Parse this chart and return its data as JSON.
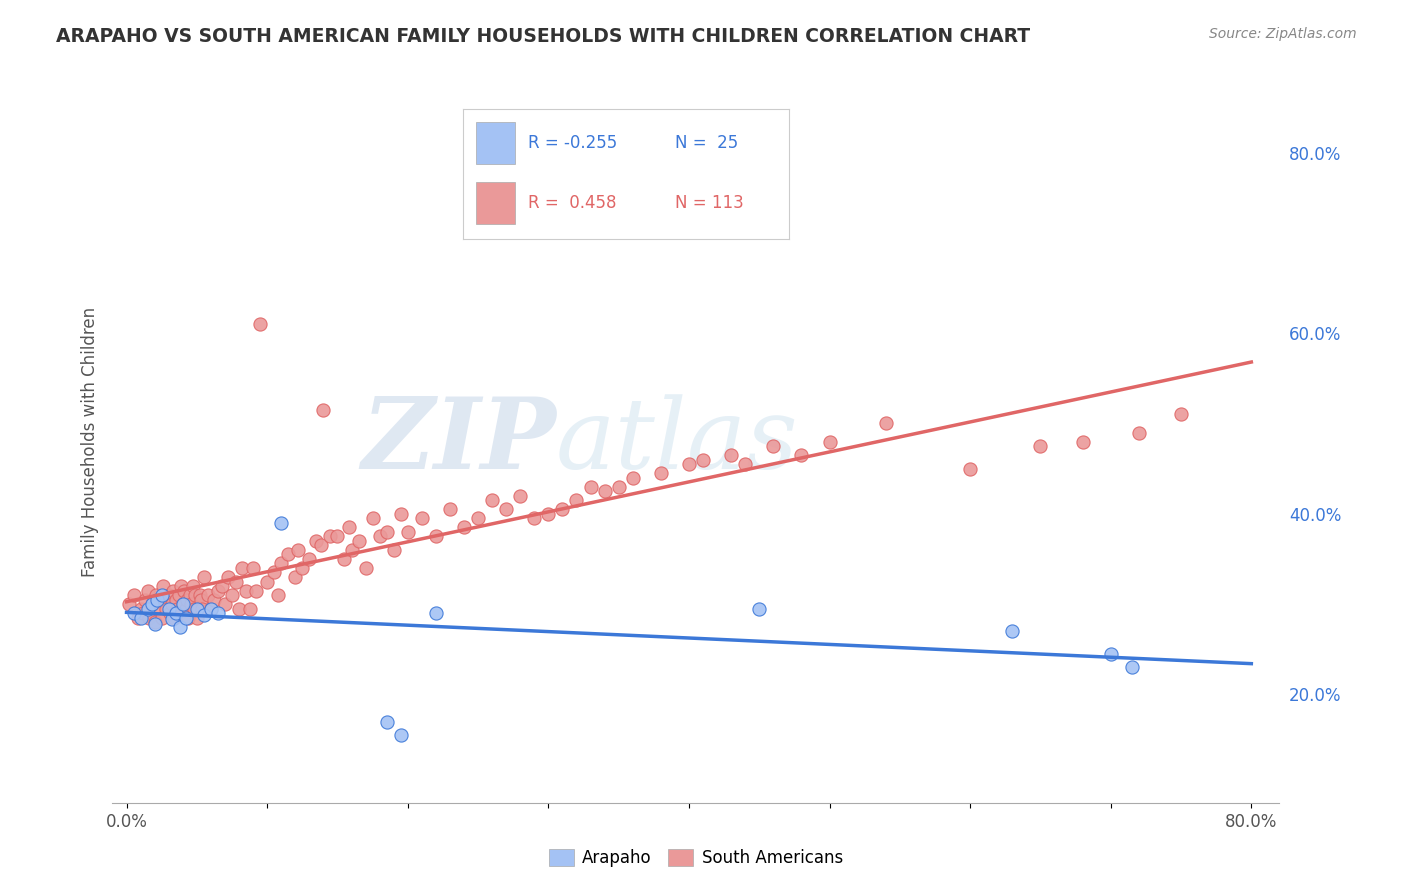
{
  "title": "ARAPAHO VS SOUTH AMERICAN FAMILY HOUSEHOLDS WITH CHILDREN CORRELATION CHART",
  "source": "Source: ZipAtlas.com",
  "ylabel": "Family Households with Children",
  "xlim": [
    -0.01,
    0.82
  ],
  "ylim": [
    0.08,
    0.88
  ],
  "x_ticks": [
    0.0,
    0.1,
    0.2,
    0.3,
    0.4,
    0.5,
    0.6,
    0.7,
    0.8
  ],
  "x_tick_labels": [
    "0.0%",
    "",
    "",
    "",
    "",
    "",
    "",
    "",
    "80.0%"
  ],
  "y_ticks_right": [
    0.2,
    0.4,
    0.6,
    0.8
  ],
  "y_tick_labels_right": [
    "20.0%",
    "40.0%",
    "60.0%",
    "80.0%"
  ],
  "arapaho_color": "#a4c2f4",
  "sa_color": "#ea9999",
  "arapaho_line_color": "#3c78d8",
  "sa_line_color": "#e06666",
  "arapaho_R": -0.255,
  "arapaho_N": 25,
  "sa_R": 0.458,
  "sa_N": 113,
  "watermark_zip": "ZIP",
  "watermark_atlas": "atlas",
  "background_color": "#ffffff",
  "grid_color": "#cccccc",
  "arapaho_x": [
    0.005,
    0.01,
    0.015,
    0.018,
    0.02,
    0.022,
    0.025,
    0.03,
    0.032,
    0.035,
    0.038,
    0.04,
    0.042,
    0.05,
    0.055,
    0.06,
    0.065,
    0.11,
    0.185,
    0.195,
    0.22,
    0.45,
    0.63,
    0.7,
    0.715
  ],
  "arapaho_y": [
    0.29,
    0.285,
    0.295,
    0.3,
    0.278,
    0.305,
    0.31,
    0.295,
    0.283,
    0.29,
    0.275,
    0.3,
    0.285,
    0.295,
    0.288,
    0.295,
    0.29,
    0.39,
    0.17,
    0.155,
    0.29,
    0.295,
    0.27,
    0.245,
    0.23
  ],
  "sa_x": [
    0.002,
    0.005,
    0.008,
    0.01,
    0.012,
    0.013,
    0.015,
    0.016,
    0.018,
    0.02,
    0.021,
    0.022,
    0.024,
    0.025,
    0.026,
    0.028,
    0.03,
    0.031,
    0.032,
    0.033,
    0.034,
    0.035,
    0.036,
    0.037,
    0.038,
    0.039,
    0.04,
    0.041,
    0.042,
    0.043,
    0.044,
    0.045,
    0.046,
    0.047,
    0.048,
    0.049,
    0.05,
    0.051,
    0.052,
    0.053,
    0.054,
    0.055,
    0.058,
    0.06,
    0.062,
    0.065,
    0.068,
    0.07,
    0.072,
    0.075,
    0.078,
    0.08,
    0.082,
    0.085,
    0.088,
    0.09,
    0.092,
    0.095,
    0.1,
    0.105,
    0.108,
    0.11,
    0.115,
    0.12,
    0.122,
    0.125,
    0.13,
    0.135,
    0.138,
    0.14,
    0.145,
    0.15,
    0.155,
    0.158,
    0.16,
    0.165,
    0.17,
    0.175,
    0.18,
    0.185,
    0.19,
    0.195,
    0.2,
    0.21,
    0.22,
    0.23,
    0.24,
    0.25,
    0.26,
    0.27,
    0.28,
    0.29,
    0.3,
    0.31,
    0.32,
    0.33,
    0.34,
    0.35,
    0.36,
    0.38,
    0.4,
    0.41,
    0.43,
    0.44,
    0.46,
    0.48,
    0.5,
    0.54,
    0.6,
    0.65,
    0.68,
    0.72,
    0.75
  ],
  "sa_y": [
    0.3,
    0.31,
    0.285,
    0.295,
    0.29,
    0.305,
    0.315,
    0.285,
    0.3,
    0.28,
    0.31,
    0.295,
    0.305,
    0.285,
    0.32,
    0.295,
    0.31,
    0.29,
    0.3,
    0.315,
    0.285,
    0.305,
    0.295,
    0.31,
    0.29,
    0.32,
    0.3,
    0.315,
    0.295,
    0.305,
    0.285,
    0.31,
    0.3,
    0.32,
    0.295,
    0.31,
    0.285,
    0.295,
    0.31,
    0.305,
    0.295,
    0.33,
    0.31,
    0.295,
    0.305,
    0.315,
    0.32,
    0.3,
    0.33,
    0.31,
    0.325,
    0.295,
    0.34,
    0.315,
    0.295,
    0.34,
    0.315,
    0.61,
    0.325,
    0.335,
    0.31,
    0.345,
    0.355,
    0.33,
    0.36,
    0.34,
    0.35,
    0.37,
    0.365,
    0.515,
    0.375,
    0.375,
    0.35,
    0.385,
    0.36,
    0.37,
    0.34,
    0.395,
    0.375,
    0.38,
    0.36,
    0.4,
    0.38,
    0.395,
    0.375,
    0.405,
    0.385,
    0.395,
    0.415,
    0.405,
    0.42,
    0.395,
    0.4,
    0.405,
    0.415,
    0.43,
    0.425,
    0.43,
    0.44,
    0.445,
    0.455,
    0.46,
    0.465,
    0.455,
    0.475,
    0.465,
    0.48,
    0.5,
    0.45,
    0.475,
    0.48,
    0.49,
    0.51
  ]
}
